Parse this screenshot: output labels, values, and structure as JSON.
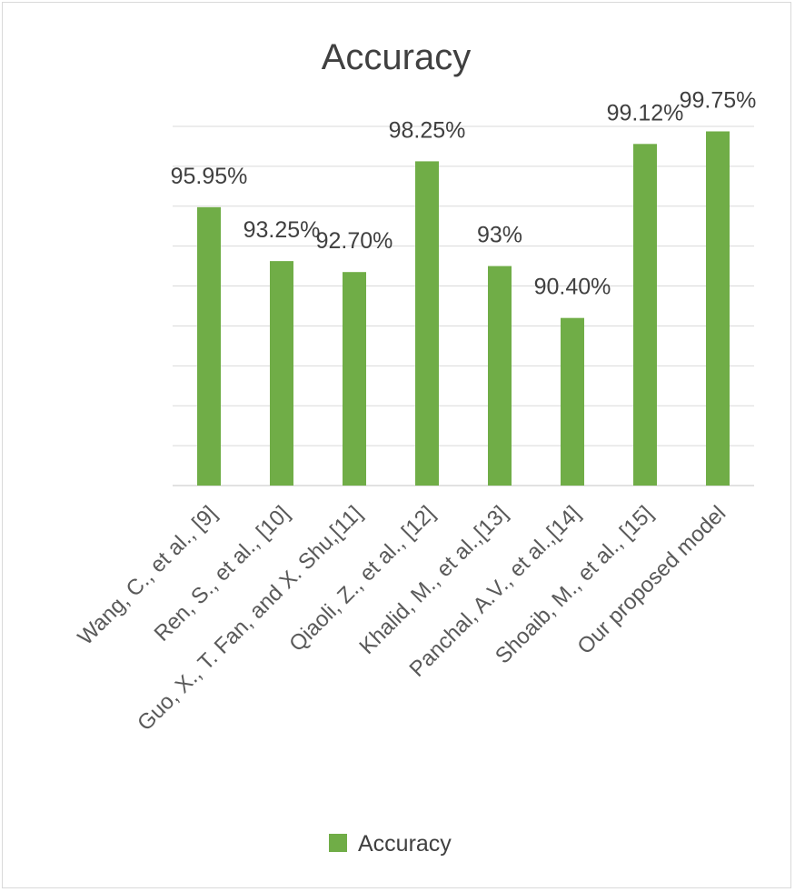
{
  "chart_data": {
    "type": "bar",
    "title": "Accuracy",
    "categories": [
      "Wang, C., et al., [9]",
      "Ren, S., et al., [10]",
      "Guo, X., T. Fan, and X. Shu,[11]",
      "Qiaoli, Z., et al., [12]",
      "Khalid, M., et al.,[13]",
      "Panchal, A.V., et al.,[14]",
      "Shoaib, M., et al., [15]",
      "Our proposed model"
    ],
    "series": [
      {
        "name": "Accuracy",
        "values": [
          95.95,
          93.25,
          92.7,
          98.25,
          93.0,
          90.4,
          99.12,
          99.75
        ],
        "data_labels": [
          "95.95%",
          "93.25%",
          "92.70%",
          "98.25%",
          "93%",
          "90.40%",
          "99.12%",
          "99.75%"
        ],
        "color": "#70ad47"
      }
    ],
    "ylim": [
      82,
      100
    ],
    "grid": true,
    "legend": "bottom-center"
  }
}
